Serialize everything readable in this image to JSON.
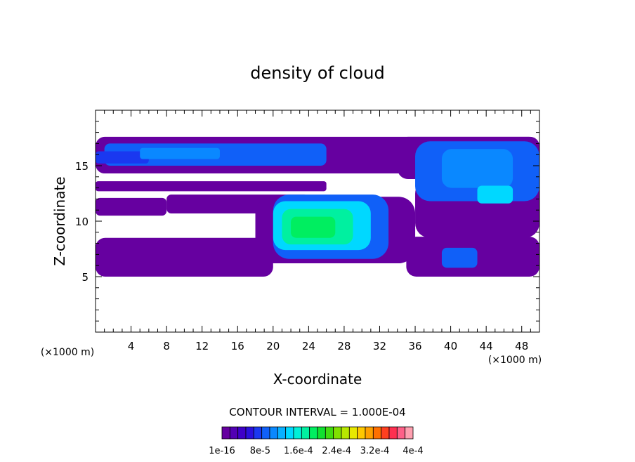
{
  "chart_data": {
    "type": "heatmap",
    "title": "density of cloud",
    "xlabel": "X-coordinate",
    "ylabel": "Z-coordinate",
    "x_unit_left": "(×1000 m)",
    "x_unit_right": "(×1000 m)",
    "xlim": [
      0,
      50
    ],
    "ylim": [
      0,
      20
    ],
    "x_ticks": [
      4,
      8,
      12,
      16,
      20,
      24,
      28,
      32,
      36,
      40,
      44,
      48
    ],
    "y_ticks": [
      5,
      10,
      15
    ],
    "contour_interval": "CONTOUR INTERVAL = 1.000E-04",
    "colorbar": {
      "colors": [
        "#6600a0",
        "#5200b4",
        "#3e00c8",
        "#2a10dc",
        "#1a38f0",
        "#1060f8",
        "#0a88ff",
        "#08b0ff",
        "#00d8ff",
        "#00f0d8",
        "#00f0a0",
        "#00ee60",
        "#10e030",
        "#40dc10",
        "#80e000",
        "#b8e800",
        "#e8e800",
        "#ffc800",
        "#ffa000",
        "#ff7000",
        "#ff4020",
        "#ff3050",
        "#ff6088",
        "#ffa0b0"
      ],
      "labels": [
        "1e-16",
        "8e-5",
        "1.6e-4",
        "2.4e-4",
        "3.2e-4",
        "4e-4"
      ]
    },
    "regions": [
      {
        "level": 0,
        "x": [
          0,
          50
        ],
        "y": [
          14.3,
          17.6
        ]
      },
      {
        "level": 0,
        "x": [
          0,
          26
        ],
        "y": [
          12.7,
          13.6
        ]
      },
      {
        "level": 0,
        "x": [
          0,
          8
        ],
        "y": [
          10.5,
          12.1
        ]
      },
      {
        "level": 0,
        "x": [
          8,
          24
        ],
        "y": [
          10.7,
          12.4
        ]
      },
      {
        "level": 0,
        "x": [
          18,
          36
        ],
        "y": [
          6.2,
          12.2
        ]
      },
      {
        "level": 0,
        "x": [
          0,
          20
        ],
        "y": [
          5.0,
          8.5
        ]
      },
      {
        "level": 0,
        "x": [
          30,
          36
        ],
        "y": [
          8.0,
          9.8
        ]
      },
      {
        "level": 0,
        "x": [
          35,
          50
        ],
        "y": [
          5.0,
          8.6
        ]
      },
      {
        "level": 0,
        "x": [
          36,
          50
        ],
        "y": [
          8.5,
          13.8
        ]
      },
      {
        "level": 0,
        "x": [
          34,
          50
        ],
        "y": [
          13.8,
          17.6
        ]
      },
      {
        "level": 5,
        "x": [
          1,
          26
        ],
        "y": [
          15.0,
          17.0
        ]
      },
      {
        "level": 4,
        "x": [
          0,
          6
        ],
        "y": [
          15.2,
          16.3
        ]
      },
      {
        "level": 6,
        "x": [
          5,
          14
        ],
        "y": [
          15.6,
          16.6
        ]
      },
      {
        "level": 5,
        "x": [
          36,
          50
        ],
        "y": [
          11.8,
          17.2
        ]
      },
      {
        "level": 6,
        "x": [
          39,
          47
        ],
        "y": [
          13.0,
          16.5
        ]
      },
      {
        "level": 8,
        "x": [
          43,
          47
        ],
        "y": [
          11.6,
          13.2
        ]
      },
      {
        "level": 5,
        "x": [
          39,
          43
        ],
        "y": [
          5.8,
          7.6
        ]
      },
      {
        "level": 5,
        "x": [
          20,
          33
        ],
        "y": [
          6.6,
          12.4
        ]
      },
      {
        "level": 8,
        "x": [
          20,
          31
        ],
        "y": [
          7.4,
          11.8
        ]
      },
      {
        "level": 10,
        "x": [
          21,
          29
        ],
        "y": [
          7.9,
          11.1
        ]
      },
      {
        "level": 11,
        "x": [
          22,
          27
        ],
        "y": [
          8.5,
          10.4
        ]
      }
    ]
  }
}
